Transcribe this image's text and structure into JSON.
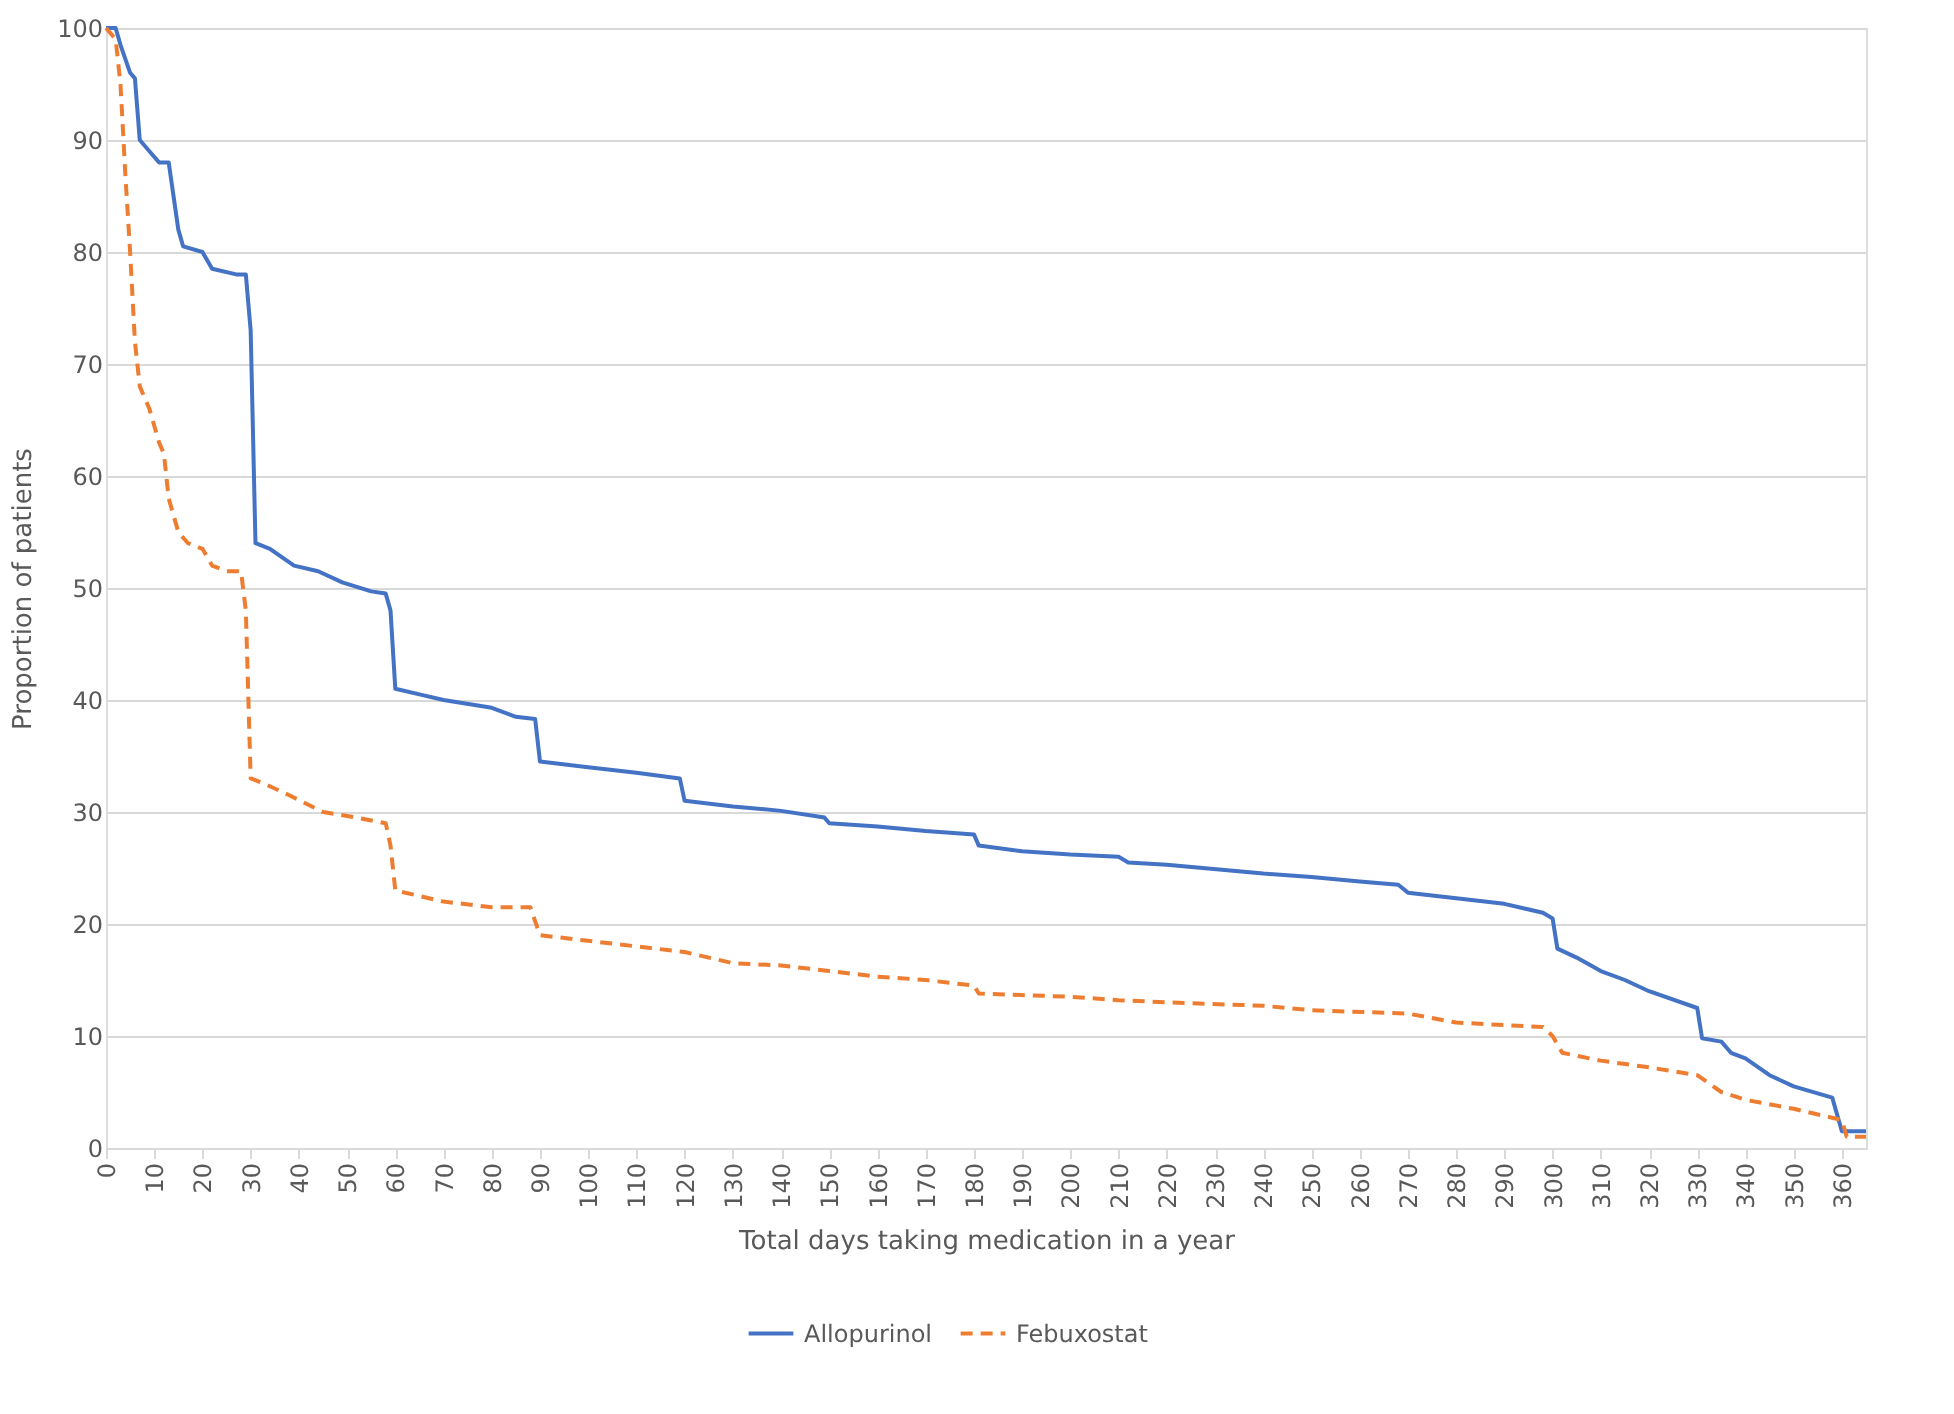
{
  "chart_data": {
    "type": "line",
    "xlabel": "Total days taking medication in a year",
    "ylabel": "Proportion of patients",
    "xlim": [
      0,
      365
    ],
    "xticks": [
      0,
      10,
      20,
      30,
      40,
      50,
      60,
      70,
      80,
      90,
      100,
      110,
      120,
      130,
      140,
      150,
      160,
      170,
      180,
      190,
      200,
      210,
      220,
      230,
      240,
      250,
      260,
      270,
      280,
      290,
      300,
      310,
      320,
      330,
      340,
      350,
      360
    ],
    "ylim": [
      0,
      100
    ],
    "yticks": [
      0,
      10,
      20,
      30,
      40,
      50,
      60,
      70,
      80,
      90,
      100
    ],
    "grid": "y",
    "legend": "bottom",
    "marker": "none",
    "series": [
      {
        "name": "Allopurinol",
        "color": "#4472c4",
        "line_style": "solid",
        "x": [
          0,
          2,
          3,
          5,
          6,
          7,
          9,
          11,
          13,
          15,
          16,
          20,
          22,
          27,
          29,
          30,
          31,
          34,
          39,
          44,
          49,
          55,
          58,
          59,
          60,
          65,
          70,
          80,
          85,
          89,
          90,
          100,
          110,
          119,
          120,
          130,
          140,
          149,
          150,
          160,
          170,
          180,
          181,
          190,
          200,
          210,
          212,
          220,
          240,
          250,
          260,
          268,
          270,
          280,
          290,
          298,
          300,
          301,
          305,
          310,
          315,
          320,
          330,
          331,
          335,
          337,
          340,
          345,
          350,
          358,
          360,
          365
        ],
        "values": [
          100,
          100,
          98.5,
          96,
          95.5,
          90,
          89,
          88,
          88,
          82,
          80.5,
          80,
          78.5,
          78,
          78,
          73,
          54,
          53.5,
          52,
          51.5,
          50.5,
          49.7,
          49.5,
          48,
          41,
          40.5,
          40,
          39.3,
          38.5,
          38.3,
          34.5,
          34,
          33.5,
          33,
          31,
          30.5,
          30.1,
          29.5,
          29,
          28.7,
          28.3,
          28,
          27,
          26.5,
          26.2,
          26,
          25.5,
          25.3,
          24.5,
          24.2,
          23.8,
          23.5,
          22.8,
          22.3,
          21.8,
          21,
          20.5,
          17.8,
          17,
          15.8,
          15,
          14,
          12.5,
          9.8,
          9.5,
          8.5,
          8,
          6.5,
          5.5,
          4.5,
          1.5,
          1.5
        ]
      },
      {
        "name": "Febuxostat",
        "color": "#ed7d31",
        "line_style": "dashed",
        "x": [
          0,
          2,
          3,
          4,
          5,
          6,
          7,
          9,
          11,
          12,
          13,
          15,
          17,
          20,
          22,
          25,
          28,
          29,
          30,
          33,
          38,
          45,
          52,
          58,
          59,
          60,
          65,
          70,
          80,
          88,
          90,
          100,
          110,
          120,
          130,
          140,
          150,
          160,
          170,
          180,
          181,
          200,
          210,
          220,
          240,
          250,
          270,
          280,
          298,
          300,
          302,
          310,
          320,
          330,
          335,
          340,
          350,
          360,
          361,
          365
        ],
        "values": [
          100,
          99,
          95,
          87,
          80,
          72,
          68,
          66,
          63,
          62,
          58,
          55,
          54,
          53.5,
          52,
          51.5,
          51.5,
          48,
          33,
          32.5,
          31.5,
          30,
          29.5,
          29,
          27,
          23,
          22.5,
          22,
          21.5,
          21.5,
          19,
          18.5,
          18,
          17.5,
          16.5,
          16.3,
          15.8,
          15.3,
          15,
          14.5,
          13.8,
          13.5,
          13.2,
          13,
          12.7,
          12.3,
          12,
          11.2,
          10.8,
          10,
          8.5,
          7.8,
          7.2,
          6.5,
          5,
          4.3,
          3.5,
          2.5,
          1,
          1
        ]
      }
    ]
  }
}
